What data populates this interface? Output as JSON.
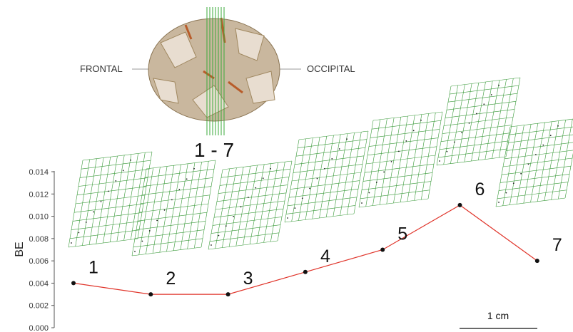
{
  "skull": {
    "anterior_label": "FRONTAL",
    "posterior_label": "OCCIPITAL",
    "section_range_label": "1 - 7"
  },
  "scale_bar": {
    "label": "1 cm"
  },
  "chart_data": {
    "type": "line",
    "title": "",
    "xlabel": "",
    "ylabel": "BE",
    "ylim": [
      0,
      0.014
    ],
    "yticks": [
      "0.014",
      "0.012",
      "0.010",
      "0.008",
      "0.006",
      "0.004",
      "0.002",
      "0.000"
    ],
    "x": [
      1,
      2,
      3,
      4,
      5,
      6,
      7
    ],
    "point_labels": [
      "1",
      "2",
      "3",
      "4",
      "5",
      "6",
      "7"
    ],
    "series": [
      {
        "values": [
          0.004,
          0.003,
          0.003,
          0.005,
          0.007,
          0.011,
          0.006
        ]
      }
    ],
    "grid": false,
    "colors": {
      "line": "#e0342a",
      "marker": "#111111",
      "deformation_grid": "#3a9a3a"
    }
  }
}
